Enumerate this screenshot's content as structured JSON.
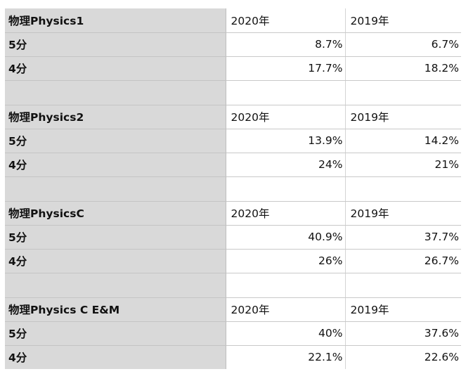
{
  "sections": [
    {
      "title": "物理Physics1",
      "year_a": "2020年",
      "year_b": "2019年",
      "rows": [
        {
          "label": "5分",
          "a": "8.7%",
          "b": "6.7%"
        },
        {
          "label": "4分",
          "a": "17.7%",
          "b": "18.2%"
        }
      ]
    },
    {
      "title": "物理Physics2",
      "year_a": "2020年",
      "year_b": "2019年",
      "rows": [
        {
          "label": "5分",
          "a": "13.9%",
          "b": "14.2%"
        },
        {
          "label": "4分",
          "a": "24%",
          "b": "21%"
        }
      ]
    },
    {
      "title": "物理PhysicsC",
      "year_a": "2020年",
      "year_b": "2019年",
      "rows": [
        {
          "label": "5分",
          "a": "40.9%",
          "b": "37.7%"
        },
        {
          "label": "4分",
          "a": "26%",
          "b": "26.7%"
        }
      ]
    },
    {
      "title": "物理Physics C E&M",
      "year_a": "2020年",
      "year_b": "2019年",
      "rows": [
        {
          "label": "5分",
          "a": "40%",
          "b": "37.6%"
        },
        {
          "label": "4分",
          "a": "22.1%",
          "b": "22.6%"
        }
      ]
    }
  ]
}
